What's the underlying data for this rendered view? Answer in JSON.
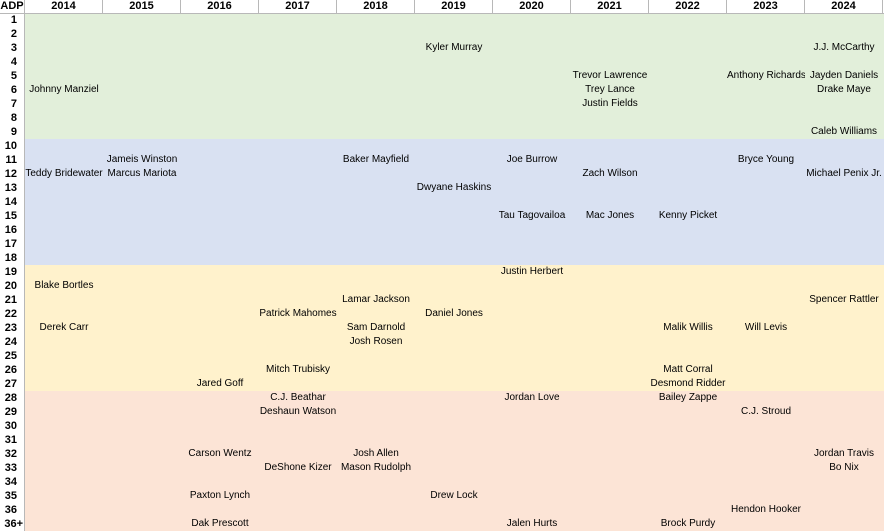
{
  "header": {
    "adp_label": "ADP",
    "years": [
      "2014",
      "2015",
      "2016",
      "2017",
      "2018",
      "2019",
      "2020",
      "2021",
      "2022",
      "2023",
      "2024"
    ]
  },
  "adp_rows": [
    "1",
    "2",
    "3",
    "4",
    "5",
    "6",
    "7",
    "8",
    "9",
    "10",
    "11",
    "12",
    "13",
    "14",
    "15",
    "16",
    "17",
    "18",
    "19",
    "20",
    "21",
    "22",
    "23",
    "24",
    "25",
    "26",
    "27",
    "28",
    "29",
    "30",
    "31",
    "32",
    "33",
    "34",
    "35",
    "36",
    "36+"
  ],
  "bands": [
    {
      "from_row": 1,
      "to_row": 9,
      "color": "#e2efda"
    },
    {
      "from_row": 10,
      "to_row": 18,
      "color": "#d9e1f2"
    },
    {
      "from_row": 19,
      "to_row": 27,
      "color": "#fff2cc"
    },
    {
      "from_row": 28,
      "to_row": 37,
      "color": "#fce4d6"
    }
  ],
  "players": [
    {
      "name": "Kyler Murray",
      "row": 3,
      "year_index": 5
    },
    {
      "name": "J.J. McCarthy",
      "row": 3,
      "year_index": 10
    },
    {
      "name": "Trevor Lawrence",
      "row": 5,
      "year_index": 7
    },
    {
      "name": "Anthony Richardson",
      "row": 5,
      "year_index": 9
    },
    {
      "name": "Jayden Daniels",
      "row": 5,
      "year_index": 10
    },
    {
      "name": "Johnny Manziel",
      "row": 6,
      "year_index": 0
    },
    {
      "name": "Trey Lance",
      "row": 6,
      "year_index": 7
    },
    {
      "name": "Drake Maye",
      "row": 6,
      "year_index": 10
    },
    {
      "name": "Justin Fields",
      "row": 7,
      "year_index": 7
    },
    {
      "name": "Caleb Williams",
      "row": 9,
      "year_index": 10
    },
    {
      "name": "Jameis Winston",
      "row": 11,
      "year_index": 1
    },
    {
      "name": "Baker Mayfield",
      "row": 11,
      "year_index": 4
    },
    {
      "name": "Joe Burrow",
      "row": 11,
      "year_index": 6
    },
    {
      "name": "Bryce Young",
      "row": 11,
      "year_index": 9
    },
    {
      "name": "Teddy Bridewater",
      "row": 12,
      "year_index": 0
    },
    {
      "name": "Marcus Mariota",
      "row": 12,
      "year_index": 1
    },
    {
      "name": "Zach Wilson",
      "row": 12,
      "year_index": 7
    },
    {
      "name": "Michael Penix Jr.",
      "row": 12,
      "year_index": 10
    },
    {
      "name": "Dwyane Haskins",
      "row": 13,
      "year_index": 5
    },
    {
      "name": "Tau Tagovailoa",
      "row": 15,
      "year_index": 6
    },
    {
      "name": "Mac Jones",
      "row": 15,
      "year_index": 7
    },
    {
      "name": "Kenny Picket",
      "row": 15,
      "year_index": 8
    },
    {
      "name": "Justin Herbert",
      "row": 19,
      "year_index": 6
    },
    {
      "name": "Blake Bortles",
      "row": 20,
      "year_index": 0
    },
    {
      "name": "Lamar Jackson",
      "row": 21,
      "year_index": 4
    },
    {
      "name": "Spencer Rattler",
      "row": 21,
      "year_index": 10
    },
    {
      "name": "Patrick Mahomes",
      "row": 22,
      "year_index": 3
    },
    {
      "name": "Daniel Jones",
      "row": 22,
      "year_index": 5
    },
    {
      "name": "Derek Carr",
      "row": 23,
      "year_index": 0
    },
    {
      "name": "Sam Darnold",
      "row": 23,
      "year_index": 4
    },
    {
      "name": "Malik Willis",
      "row": 23,
      "year_index": 8
    },
    {
      "name": "Will Levis",
      "row": 23,
      "year_index": 9
    },
    {
      "name": "Josh Rosen",
      "row": 24,
      "year_index": 4
    },
    {
      "name": "Mitch Trubisky",
      "row": 26,
      "year_index": 3
    },
    {
      "name": "Matt Corral",
      "row": 26,
      "year_index": 8
    },
    {
      "name": "Jared Goff",
      "row": 27,
      "year_index": 2
    },
    {
      "name": "Desmond Ridder",
      "row": 27,
      "year_index": 8
    },
    {
      "name": "C.J. Beathar",
      "row": 28,
      "year_index": 3
    },
    {
      "name": "Jordan Love",
      "row": 28,
      "year_index": 6
    },
    {
      "name": "Bailey Zappe",
      "row": 28,
      "year_index": 8
    },
    {
      "name": "Deshaun Watson",
      "row": 29,
      "year_index": 3
    },
    {
      "name": "C.J. Stroud",
      "row": 29,
      "year_index": 9
    },
    {
      "name": "Carson Wentz",
      "row": 32,
      "year_index": 2
    },
    {
      "name": "Josh Allen",
      "row": 32,
      "year_index": 4
    },
    {
      "name": "Jordan Travis",
      "row": 32,
      "year_index": 10
    },
    {
      "name": "DeShone Kizer",
      "row": 33,
      "year_index": 3
    },
    {
      "name": "Mason Rudolph",
      "row": 33,
      "year_index": 4
    },
    {
      "name": "Bo Nix",
      "row": 33,
      "year_index": 10
    },
    {
      "name": "Paxton Lynch",
      "row": 35,
      "year_index": 2
    },
    {
      "name": "Drew Lock",
      "row": 35,
      "year_index": 5
    },
    {
      "name": "Hendon Hooker",
      "row": 36,
      "year_index": 9
    },
    {
      "name": "Dak Prescott",
      "row": 37,
      "year_index": 2
    },
    {
      "name": "Jalen Hurts",
      "row": 37,
      "year_index": 6
    },
    {
      "name": "Brock Purdy",
      "row": 37,
      "year_index": 8
    }
  ]
}
